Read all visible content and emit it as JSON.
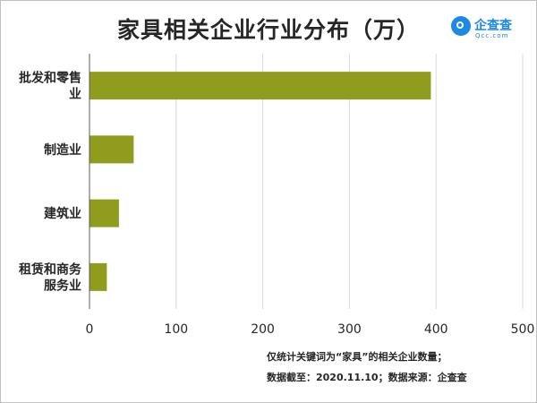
{
  "title": "家具相关企业行业分布（万）",
  "brand": {
    "name": "企查查",
    "url": "Qcc.com"
  },
  "notes": [
    "仅统计关键词为“家具”的相关企业数量；",
    "数据截至：2020.11.10；数据来源：企查查"
  ],
  "colors": {
    "bar": "#8f9c1e",
    "grid": "#d9d9d9",
    "axis": "#595959",
    "brand": "#1e88e5"
  },
  "chart_data": {
    "type": "bar",
    "orientation": "horizontal",
    "title": "家具相关企业行业分布（万）",
    "categories": [
      [
        "批发和零售",
        "业"
      ],
      [
        "制造业"
      ],
      [
        "建筑业"
      ],
      [
        "租赁和商务",
        "服务业"
      ]
    ],
    "values": [
      394,
      51,
      34,
      20
    ],
    "xlim": [
      0,
      500
    ],
    "xticks": [
      "0",
      "100",
      "200",
      "300",
      "400",
      "500"
    ],
    "xtick_values": [
      0,
      100,
      200,
      300,
      400,
      500
    ],
    "grid": true
  }
}
